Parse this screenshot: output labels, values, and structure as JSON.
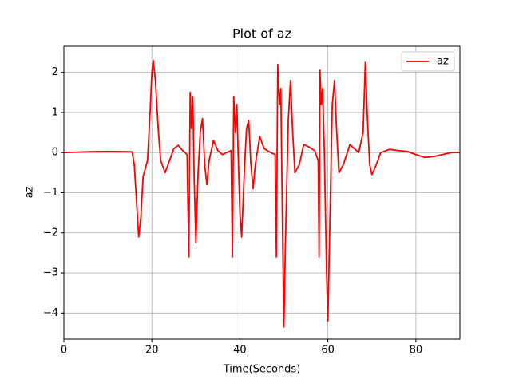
{
  "chart_data": {
    "type": "line",
    "title": "Plot of az",
    "x_label": "Time(Seconds)",
    "y_label": "az",
    "xlim": [
      0,
      90
    ],
    "ylim": [
      -4.65,
      2.65
    ],
    "xticks": [
      0,
      20,
      40,
      60,
      80
    ],
    "yticks": [
      {
        "value": -4,
        "label": "−4"
      },
      {
        "value": -3,
        "label": "−3"
      },
      {
        "value": -2,
        "label": "−2"
      },
      {
        "value": -1,
        "label": "−1"
      },
      0,
      1,
      2
    ],
    "grid": true,
    "legend": "upper right",
    "x": [
      0,
      5,
      10,
      15.5,
      16,
      16.5,
      17,
      17.5,
      18,
      19,
      19.5,
      20,
      20.3,
      20.8,
      21.5,
      22,
      23,
      24,
      25,
      26,
      27,
      28,
      28.4,
      28.7,
      29,
      29.3,
      29.6,
      30,
      30.5,
      31,
      31.5,
      32,
      32.5,
      33,
      34,
      35,
      36,
      38,
      38.3,
      38.6,
      39,
      39.3,
      39.6,
      40,
      40.4,
      41,
      41.5,
      42,
      42.5,
      43,
      43.5,
      44.5,
      45.5,
      47,
      48,
      48.3,
      48.6,
      49,
      49.3,
      49.7,
      50,
      50.4,
      51,
      51.5,
      52,
      52.5,
      53.5,
      54.5,
      55.5,
      57,
      57.8,
      58,
      58.2,
      58.5,
      58.8,
      59.2,
      59.7,
      60,
      60.4,
      61,
      61.5,
      62,
      62.5,
      63.5,
      65,
      66,
      67,
      68,
      68.5,
      69,
      69.5,
      70,
      71,
      72,
      74,
      76,
      78,
      80,
      82,
      84,
      86,
      88,
      90
    ],
    "series": [
      {
        "name": "az",
        "color": "#ff0000",
        "values": [
          0,
          0.02,
          0.03,
          0.02,
          -0.3,
          -1.2,
          -2.1,
          -1.6,
          -0.6,
          -0.2,
          0.8,
          2.0,
          2.3,
          1.8,
          0.5,
          -0.2,
          -0.5,
          -0.2,
          0.1,
          0.18,
          0.05,
          -0.05,
          -2.6,
          1.5,
          0.6,
          1.4,
          -0.6,
          -2.25,
          -0.5,
          0.5,
          0.85,
          -0.3,
          -0.8,
          -0.2,
          0.3,
          0.05,
          -0.05,
          0.05,
          -2.6,
          1.4,
          0.5,
          1.2,
          0,
          -1.5,
          -2.1,
          -0.5,
          0.6,
          0.8,
          -0.3,
          -0.9,
          -0.3,
          0.4,
          0.1,
          0,
          -0.05,
          -2.6,
          2.2,
          1.2,
          1.6,
          -2,
          -4.35,
          -2,
          0.8,
          1.8,
          0.5,
          -0.5,
          -0.3,
          0.2,
          0.15,
          0.05,
          -0.2,
          -2.6,
          2.05,
          1.2,
          1.6,
          0,
          -3,
          -4.2,
          -2,
          1.2,
          1.8,
          0.5,
          -0.5,
          -0.3,
          0.2,
          0.1,
          0,
          0.5,
          2.25,
          0.8,
          -0.3,
          -0.55,
          -0.3,
          0,
          0.08,
          0.05,
          0.03,
          -0.05,
          -0.12,
          -0.1,
          -0.05,
          0,
          0
        ]
      }
    ]
  }
}
